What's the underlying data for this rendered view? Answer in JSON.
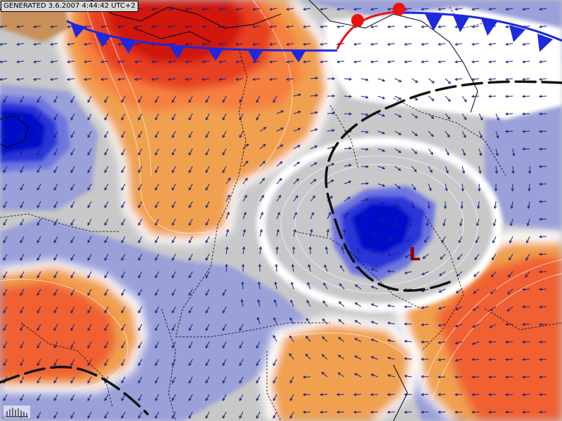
{
  "header": {
    "generated_stamp": "GENERATED 3.6.2007 4:44:42 UTC+2"
  },
  "map": {
    "pressure_system_label": "L",
    "icons": [
      "wind-barb-arrows",
      "cold-front",
      "warm-front",
      "trough-line",
      "legend-bars-icon"
    ]
  },
  "colors": {
    "cold_front": "#1e28dc",
    "warm_front": "#ee1010",
    "low_label": "#8a0000",
    "deep_blue": "#0010c8",
    "light_blue": "#9aa0d8",
    "grey": "#c8c8c8",
    "orange": "#f0a050",
    "red_orange": "#f06030",
    "deep_red": "#d01808",
    "wind_arrows": "#1a237e"
  }
}
